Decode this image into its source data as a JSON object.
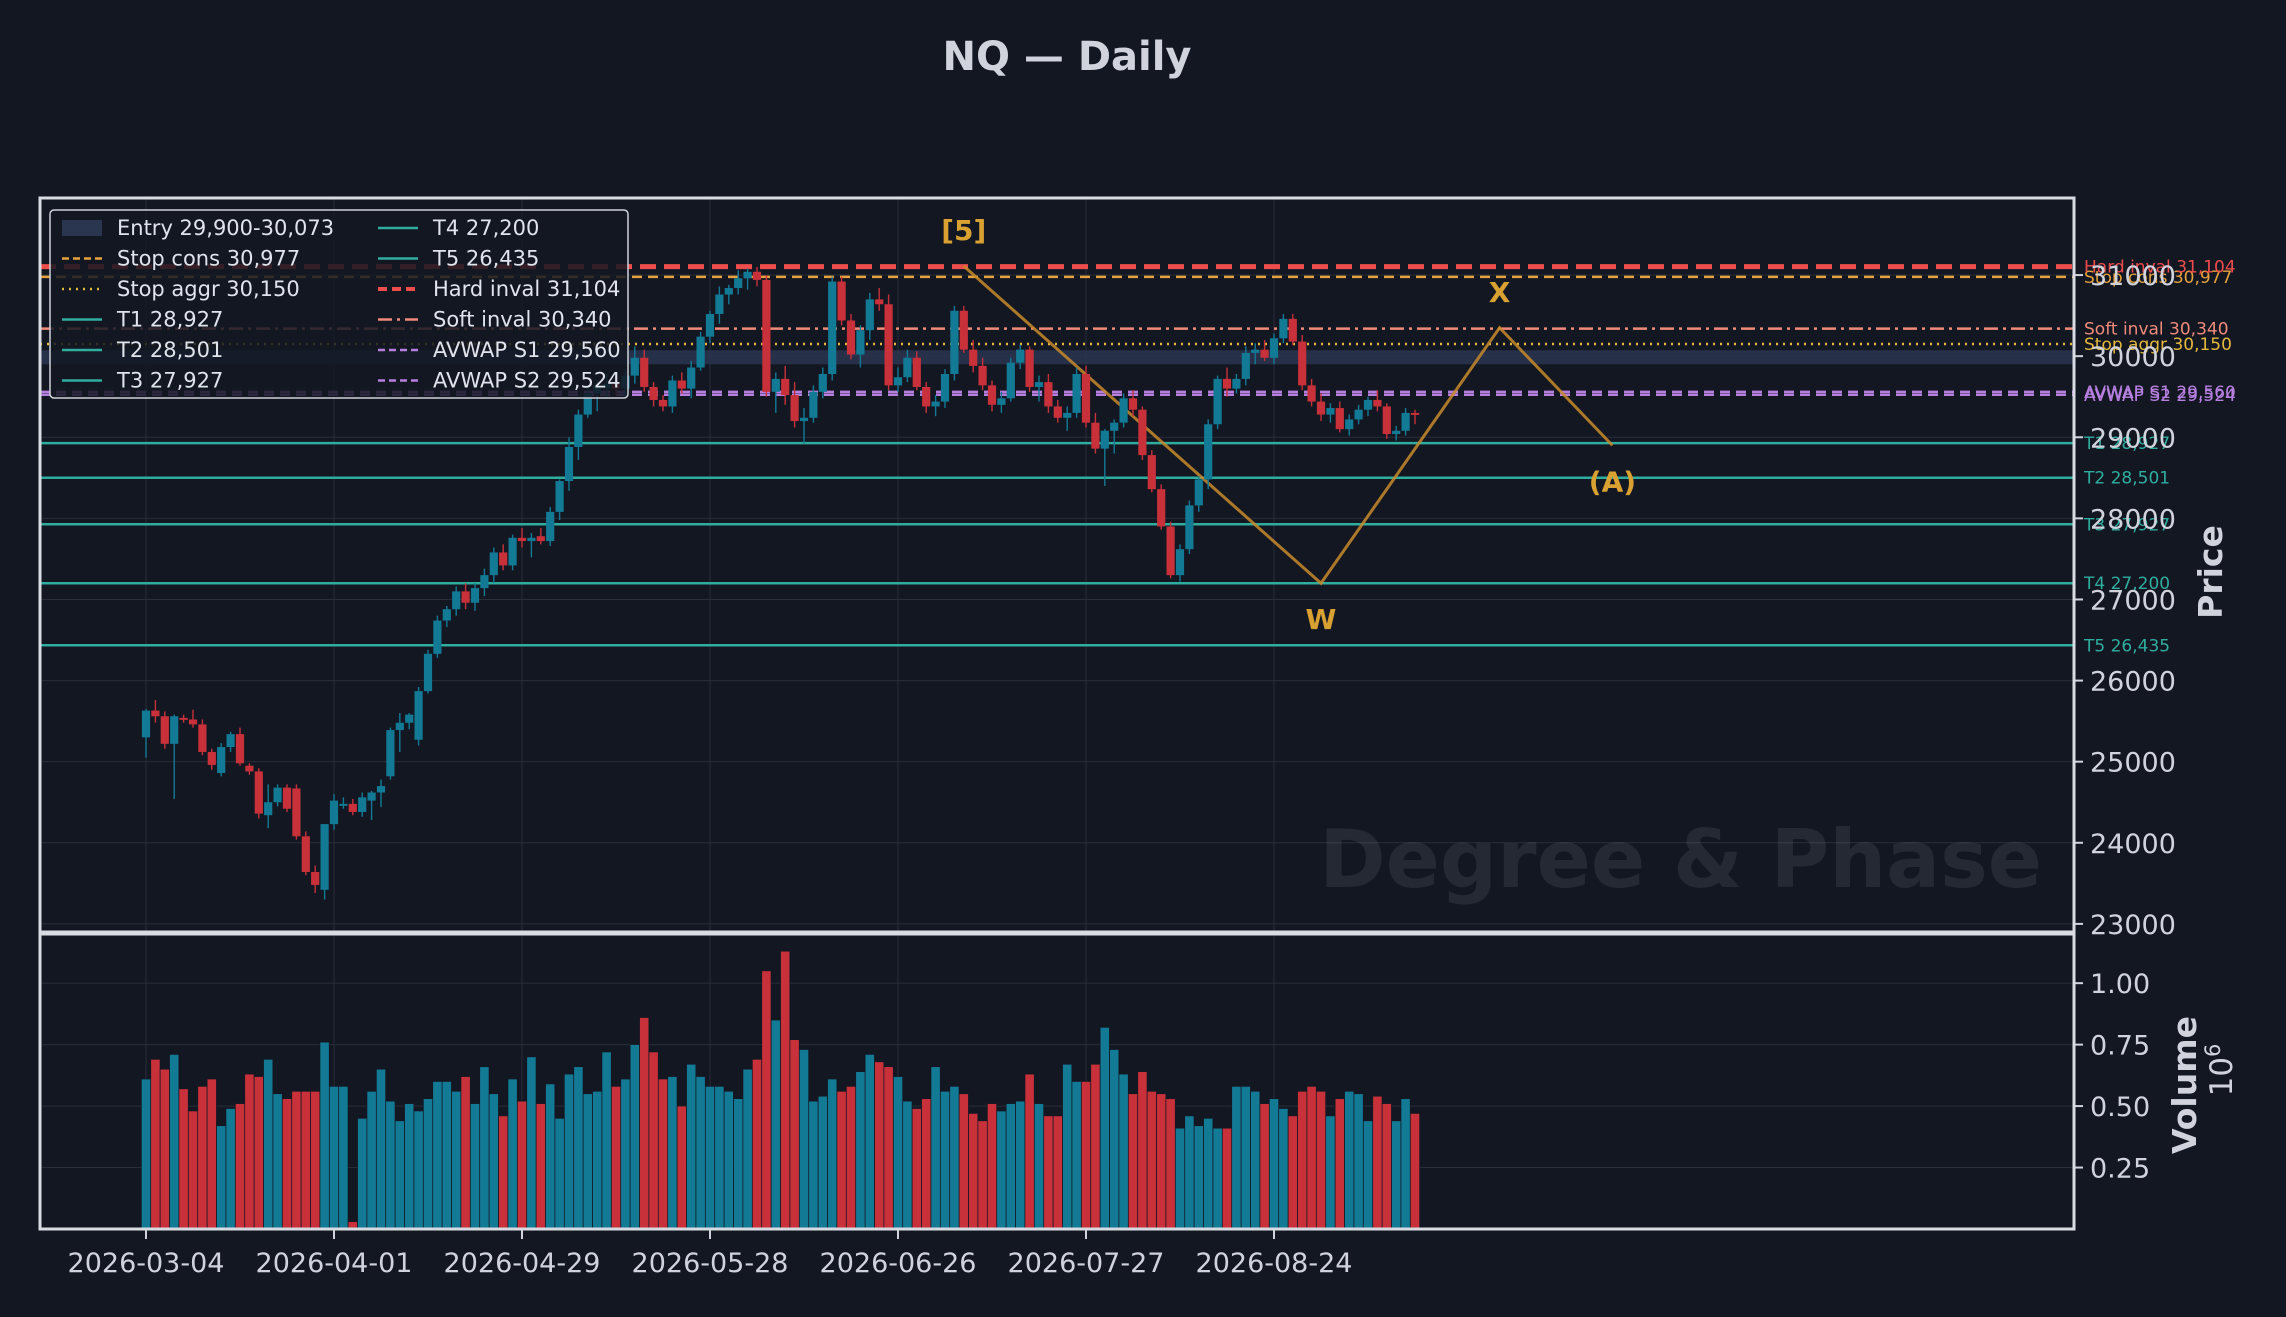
{
  "chart_data": {
    "type": "candlestick",
    "title": "NQ — Daily",
    "watermark": "Degree & Phase",
    "ylabel_price": "Price",
    "ylabel_volume": "Volume",
    "volume_exponent_label": "10^6",
    "date_ticks": [
      "2026-03-04",
      "2026-04-01",
      "2026-04-29",
      "2026-05-28",
      "2026-06-26",
      "2026-07-27",
      "2026-08-24"
    ],
    "price_ticks": [
      23000,
      24000,
      25000,
      26000,
      27000,
      28000,
      29000,
      30000,
      31000
    ],
    "price_tick_labels": [
      "23000",
      "24000",
      "25000",
      "26000",
      "27000",
      "28000",
      "29000",
      "30000",
      "31000"
    ],
    "volume_ticks": [
      0.25,
      0.5,
      0.75,
      1.0
    ],
    "volume_tick_labels": [
      "0.25",
      "0.50",
      "0.75",
      "1.00"
    ],
    "ylim_price": [
      22900,
      31950
    ],
    "ylim_volume": [
      0,
      1.2
    ],
    "grid": true,
    "colors": {
      "up": "#137a96",
      "down": "#c8303a",
      "background": "#131722",
      "entry_zone": "#2a3550"
    },
    "entry_zone": {
      "label": "Entry 29,900-30,073",
      "low": 29900,
      "high": 30073
    },
    "levels": [
      {
        "label": "Stop cons 30,977",
        "price": 30977,
        "color": "#e6a23c",
        "style": "dashed"
      },
      {
        "label": "Stop aggr 30,150",
        "price": 30150,
        "color": "#e6b93c",
        "style": "dotted"
      },
      {
        "label": "T1 28,927",
        "price": 28927,
        "color": "#2fae9f",
        "style": "solid"
      },
      {
        "label": "T2 28,501",
        "price": 28501,
        "color": "#2fae9f",
        "style": "solid"
      },
      {
        "label": "T3 27,927",
        "price": 27927,
        "color": "#2fae9f",
        "style": "solid"
      },
      {
        "label": "T4 27,200",
        "price": 27200,
        "color": "#2fae9f",
        "style": "solid"
      },
      {
        "label": "T5 26,435",
        "price": 26435,
        "color": "#2fae9f",
        "style": "solid"
      },
      {
        "label": "Hard inval 31,104",
        "price": 31104,
        "color": "#ef4c4c",
        "style": "thickdash"
      },
      {
        "label": "Soft inval 30,340",
        "price": 30340,
        "color": "#f08a7a",
        "style": "dashdot"
      },
      {
        "label": "AVWAP S1 29,560",
        "price": 29560,
        "color": "#b77fe0",
        "style": "dashed"
      },
      {
        "label": "AVWAP S2 29,524",
        "price": 29524,
        "color": "#b77fe0",
        "style": "dashed"
      }
    ],
    "wave_labels": [
      {
        "text": "[5]",
        "index": 87,
        "price": 31110
      },
      {
        "text": "W",
        "index": 125,
        "price": 27200
      },
      {
        "text": "X",
        "index": 144,
        "price": 30350
      },
      {
        "text": "(A)",
        "index": 156,
        "price": 28900
      }
    ],
    "wave_path": [
      {
        "index": 87,
        "price": 31110
      },
      {
        "index": 125,
        "price": 27200
      },
      {
        "index": 144,
        "price": 30350
      },
      {
        "index": 156,
        "price": 28900
      }
    ],
    "candles": [
      [
        25300,
        25650,
        25050,
        25630,
        0.61
      ],
      [
        25630,
        25760,
        25480,
        25560,
        0.69
      ],
      [
        25560,
        25620,
        25160,
        25220,
        0.65
      ],
      [
        25220,
        25580,
        24540,
        25560,
        0.71
      ],
      [
        25540,
        25580,
        25480,
        25520,
        0.57
      ],
      [
        25520,
        25640,
        25420,
        25460,
        0.48
      ],
      [
        25460,
        25520,
        25080,
        25120,
        0.58
      ],
      [
        25120,
        25160,
        24900,
        24960,
        0.61
      ],
      [
        24860,
        25230,
        24820,
        25180,
        0.42
      ],
      [
        25180,
        25370,
        25120,
        25340,
        0.49
      ],
      [
        25340,
        25420,
        24950,
        24980,
        0.51
      ],
      [
        24950,
        24980,
        24840,
        24880,
        0.63
      ],
      [
        24880,
        24920,
        24300,
        24360,
        0.62
      ],
      [
        24340,
        24720,
        24180,
        24500,
        0.69
      ],
      [
        24500,
        24720,
        24450,
        24680,
        0.55
      ],
      [
        24680,
        24720,
        24380,
        24420,
        0.53
      ],
      [
        24670,
        24720,
        24040,
        24080,
        0.56
      ],
      [
        24080,
        24140,
        23600,
        23640,
        0.56
      ],
      [
        23640,
        23720,
        23380,
        23480,
        0.56
      ],
      [
        23420,
        24230,
        23300,
        24230,
        0.76
      ],
      [
        24230,
        24600,
        24160,
        24520,
        0.58
      ],
      [
        24480,
        24560,
        24420,
        24480,
        0.58
      ],
      [
        24480,
        24540,
        24340,
        24380,
        0.03
      ],
      [
        24380,
        24620,
        24320,
        24560,
        0.45
      ],
      [
        24520,
        24640,
        24280,
        24620,
        0.56
      ],
      [
        24620,
        24780,
        24440,
        24700,
        0.65
      ],
      [
        24820,
        25420,
        24780,
        25390,
        0.52
      ],
      [
        25390,
        25600,
        25120,
        25480,
        0.44
      ],
      [
        25480,
        25600,
        25400,
        25580,
        0.51
      ],
      [
        25270,
        25920,
        25200,
        25870,
        0.48
      ],
      [
        25870,
        26380,
        25840,
        26330,
        0.53
      ],
      [
        26330,
        26800,
        26280,
        26740,
        0.6
      ],
      [
        26740,
        26920,
        26660,
        26880,
        0.6
      ],
      [
        26880,
        27160,
        26800,
        27100,
        0.56
      ],
      [
        27100,
        27200,
        26880,
        26960,
        0.62
      ],
      [
        26960,
        27200,
        26860,
        27140,
        0.51
      ],
      [
        27140,
        27380,
        27040,
        27300,
        0.66
      ],
      [
        27300,
        27640,
        27200,
        27580,
        0.55
      ],
      [
        27580,
        27680,
        27360,
        27420,
        0.46
      ],
      [
        27420,
        27800,
        27360,
        27760,
        0.61
      ],
      [
        27760,
        27880,
        27640,
        27720,
        0.52
      ],
      [
        27720,
        27820,
        27520,
        27760,
        0.7
      ],
      [
        27780,
        27880,
        27680,
        27720,
        0.51
      ],
      [
        27720,
        28140,
        27660,
        28080,
        0.59
      ],
      [
        28080,
        28480,
        27980,
        28460,
        0.45
      ],
      [
        28460,
        29000,
        28340,
        28880,
        0.63
      ],
      [
        28880,
        29340,
        28720,
        29280,
        0.66
      ],
      [
        29280,
        29620,
        29240,
        29540,
        0.55
      ],
      [
        29540,
        29700,
        29320,
        29640,
        0.56
      ],
      [
        29600,
        29780,
        29480,
        29660,
        0.72
      ],
      [
        29660,
        29720,
        29520,
        29600,
        0.58
      ],
      [
        29600,
        29840,
        29480,
        29760,
        0.61
      ],
      [
        29760,
        30120,
        29660,
        29980,
        0.75
      ],
      [
        29980,
        30080,
        29560,
        29620,
        0.86
      ],
      [
        29620,
        29680,
        29380,
        29460,
        0.72
      ],
      [
        29460,
        29520,
        29320,
        29380,
        0.61
      ],
      [
        29380,
        29760,
        29300,
        29700,
        0.62
      ],
      [
        29700,
        29800,
        29540,
        29600,
        0.5
      ],
      [
        29600,
        29940,
        29480,
        29860,
        0.67
      ],
      [
        29860,
        30300,
        29820,
        30240,
        0.62
      ],
      [
        30240,
        30560,
        30160,
        30520,
        0.58
      ],
      [
        30520,
        30860,
        30400,
        30760,
        0.58
      ],
      [
        30760,
        30880,
        30640,
        30840,
        0.56
      ],
      [
        30840,
        31060,
        30760,
        30960,
        0.53
      ],
      [
        30960,
        31080,
        30820,
        31040,
        0.65
      ],
      [
        31040,
        31100,
        30860,
        30940,
        0.69
      ],
      [
        30940,
        31000,
        29500,
        29560,
        1.05
      ],
      [
        29560,
        29800,
        29300,
        29720,
        0.85
      ],
      [
        29720,
        29880,
        29400,
        29520,
        1.13
      ],
      [
        29520,
        29680,
        29120,
        29200,
        0.77
      ],
      [
        29200,
        29360,
        28920,
        29240,
        0.73
      ],
      [
        29240,
        29640,
        29180,
        29560,
        0.52
      ],
      [
        29560,
        29860,
        29480,
        29780,
        0.54
      ],
      [
        29780,
        30980,
        29700,
        30920,
        0.61
      ],
      [
        30920,
        30980,
        30380,
        30440,
        0.56
      ],
      [
        30440,
        30520,
        29960,
        30020,
        0.58
      ],
      [
        30020,
        30380,
        29860,
        30320,
        0.64
      ],
      [
        30320,
        30780,
        30200,
        30700,
        0.71
      ],
      [
        30700,
        30840,
        30560,
        30640,
        0.68
      ],
      [
        30640,
        30760,
        29580,
        29640,
        0.66
      ],
      [
        29640,
        29860,
        29560,
        29740,
        0.62
      ],
      [
        29740,
        30080,
        29680,
        29980,
        0.52
      ],
      [
        29980,
        30060,
        29580,
        29620,
        0.49
      ],
      [
        29620,
        29680,
        29300,
        29380,
        0.53
      ],
      [
        29380,
        29520,
        29260,
        29440,
        0.66
      ],
      [
        29440,
        29840,
        29360,
        29780,
        0.56
      ],
      [
        29780,
        30620,
        29700,
        30560,
        0.58
      ],
      [
        30560,
        30620,
        30040,
        30080,
        0.55
      ],
      [
        30080,
        30200,
        29800,
        29880,
        0.47
      ],
      [
        29880,
        29980,
        29580,
        29640,
        0.44
      ],
      [
        29640,
        29700,
        29320,
        29400,
        0.51
      ],
      [
        29400,
        29560,
        29300,
        29480,
        0.48
      ],
      [
        29480,
        29980,
        29440,
        29920,
        0.51
      ],
      [
        29920,
        30140,
        29840,
        30080,
        0.52
      ],
      [
        30080,
        30120,
        29560,
        29620,
        0.63
      ],
      [
        29620,
        29760,
        29440,
        29680,
        0.51
      ],
      [
        29680,
        29780,
        29300,
        29380,
        0.46
      ],
      [
        29380,
        29460,
        29180,
        29240,
        0.46
      ],
      [
        29240,
        29380,
        29080,
        29300,
        0.67
      ],
      [
        29300,
        29860,
        29240,
        29780,
        0.6
      ],
      [
        29780,
        29880,
        29120,
        29180,
        0.6
      ],
      [
        29180,
        29300,
        28800,
        28860,
        0.67
      ],
      [
        28860,
        29100,
        28400,
        29080,
        0.82
      ],
      [
        29080,
        29220,
        28800,
        29180,
        0.73
      ],
      [
        29180,
        29540,
        29120,
        29480,
        0.63
      ],
      [
        29480,
        29580,
        29260,
        29340,
        0.55
      ],
      [
        29340,
        29380,
        28720,
        28780,
        0.64
      ],
      [
        28780,
        28840,
        28320,
        28360,
        0.56
      ],
      [
        28360,
        28420,
        27860,
        27900,
        0.55
      ],
      [
        27900,
        27960,
        27260,
        27300,
        0.53
      ],
      [
        27300,
        27680,
        27220,
        27620,
        0.41
      ],
      [
        27620,
        28220,
        27560,
        28160,
        0.46
      ],
      [
        28160,
        28520,
        28080,
        28480,
        0.42
      ],
      [
        28480,
        29220,
        28360,
        29160,
        0.45
      ],
      [
        29160,
        29760,
        29100,
        29720,
        0.41
      ],
      [
        29720,
        29860,
        29500,
        29600,
        0.41
      ],
      [
        29600,
        29780,
        29540,
        29720,
        0.58
      ],
      [
        29720,
        30120,
        29640,
        30040,
        0.58
      ],
      [
        30040,
        30160,
        29900,
        30080,
        0.56
      ],
      [
        30080,
        30200,
        29940,
        29980,
        0.51
      ],
      [
        29980,
        30280,
        29900,
        30220,
        0.53
      ],
      [
        30220,
        30520,
        30160,
        30460,
        0.49
      ],
      [
        30460,
        30520,
        30140,
        30180,
        0.46
      ],
      [
        30180,
        30260,
        29580,
        29640,
        0.56
      ],
      [
        29640,
        29720,
        29380,
        29440,
        0.58
      ],
      [
        29440,
        29540,
        29200,
        29280,
        0.56
      ],
      [
        29280,
        29420,
        29180,
        29360,
        0.46
      ],
      [
        29360,
        29440,
        29060,
        29100,
        0.53
      ],
      [
        29100,
        29280,
        29020,
        29220,
        0.56
      ],
      [
        29220,
        29400,
        29160,
        29340,
        0.55
      ],
      [
        29340,
        29500,
        29260,
        29460,
        0.44
      ],
      [
        29460,
        29580,
        29320,
        29380,
        0.54
      ],
      [
        29380,
        29420,
        28980,
        29040,
        0.51
      ],
      [
        29040,
        29140,
        28960,
        29080,
        0.44
      ],
      [
        29080,
        29360,
        29020,
        29300,
        0.53
      ],
      [
        29300,
        29340,
        29160,
        29280,
        0.47
      ]
    ]
  }
}
